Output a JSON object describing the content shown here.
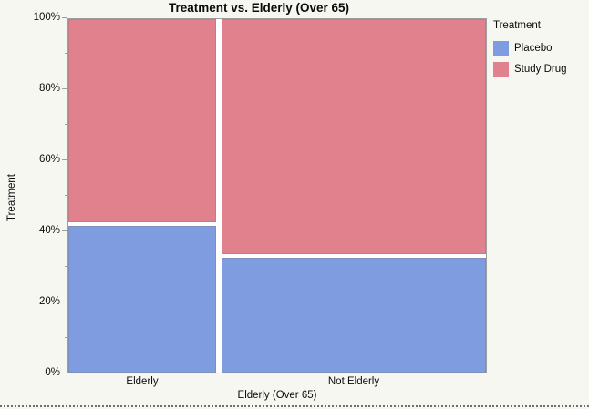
{
  "page": {
    "background": "#f7f7f2"
  },
  "chart_data": {
    "type": "mosaic",
    "title": "Treatment vs. Elderly (Over 65)",
    "xlabel": "Elderly (Over 65)",
    "ylabel": "Treatment",
    "categories": [
      "Elderly",
      "Not Elderly"
    ],
    "category_width_pct": [
      35.9,
      64.1
    ],
    "series": [
      {
        "name": "Placebo",
        "color": "#7F9CE0",
        "values_pct": [
          42,
          33
        ]
      },
      {
        "name": "Study Drug",
        "color": "#E0818D",
        "values_pct": [
          58,
          67
        ]
      }
    ],
    "y_axis": {
      "range": [
        0,
        100
      ],
      "major_tick_labels": [
        "0%",
        "20%",
        "40%",
        "60%",
        "80%",
        "100%"
      ],
      "minor_tick_step_pct": 10,
      "grid": false
    },
    "legend": {
      "position": "right",
      "title": "Treatment",
      "items": [
        {
          "label": "Placebo",
          "color": "#7F9CE0"
        },
        {
          "label": "Study Drug",
          "color": "#E0818D"
        }
      ]
    }
  }
}
